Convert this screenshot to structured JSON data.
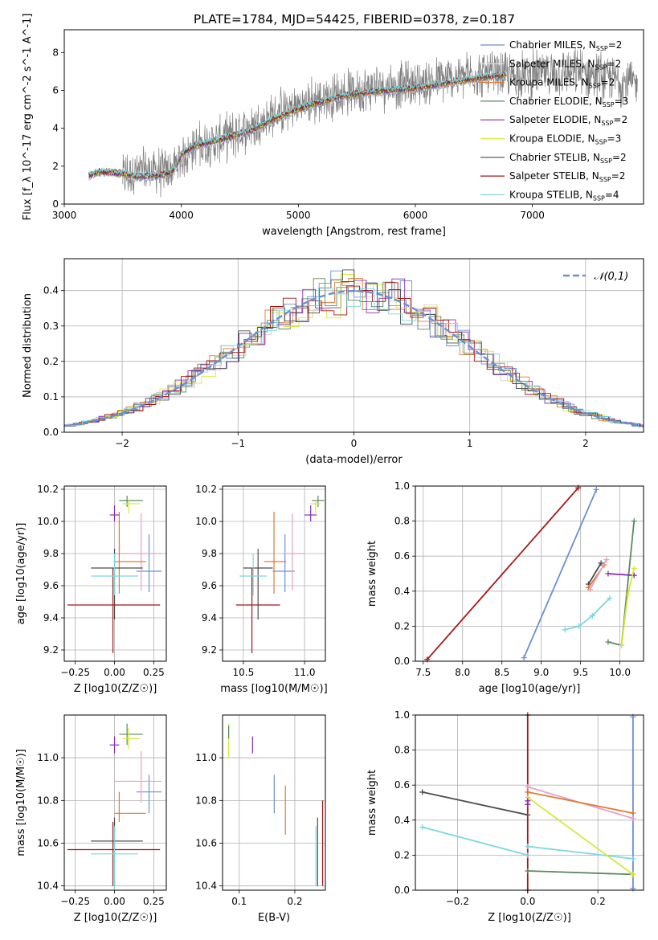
{
  "figure": {
    "title": "PLATE=1784, MJD=54425, FIBERID=0378, z=0.187"
  },
  "models": [
    {
      "name": "Chabrier MILES",
      "nssp": "2",
      "color": "#6b8fd6"
    },
    {
      "name": "Salpeter MILES",
      "nssp": "2",
      "color": "#e3e3e3"
    },
    {
      "name": "Kroupa MILES",
      "nssp": "2",
      "color": "#e07b2f"
    },
    {
      "name": "Chabrier ELODIE",
      "nssp": "3",
      "color": "#5a8a5e"
    },
    {
      "name": "Salpeter ELODIE",
      "nssp": "2",
      "color": "#8e2ab5"
    },
    {
      "name": "Kroupa ELODIE",
      "nssp": "3",
      "color": "#d6e83a"
    },
    {
      "name": "Chabrier STELIB",
      "nssp": "2",
      "color": "#4d4d4d"
    },
    {
      "name": "Salpeter STELIB",
      "nssp": "2",
      "color": "#a51717"
    },
    {
      "name": "Kroupa STELIB",
      "nssp": "4",
      "color": "#7ad8df"
    }
  ],
  "chart_data": [
    {
      "id": "spectrum",
      "type": "line",
      "title": "PLATE=1784, MJD=54425, FIBERID=0378, z=0.187",
      "xlabel": "wavelength [Angstrom, rest frame]",
      "ylabel": "Flux [f_λ 10^-17 erg cm^-2 s^-1 A^-1]",
      "xlim": [
        3000,
        7950
      ],
      "ylim": [
        0,
        9.2
      ],
      "xticks": [
        3000,
        4000,
        5000,
        6000,
        7000
      ],
      "yticks": [
        0,
        2,
        4,
        6,
        8
      ],
      "legend": "top-right",
      "data_color": "#808080",
      "data_spectrum": {
        "x": [
          3500,
          3700,
          3900,
          4100,
          4300,
          4500,
          4700,
          4900,
          5100,
          5300,
          5500,
          5700,
          5900,
          6100,
          6300,
          6500,
          6700,
          6900,
          7100,
          7300,
          7500,
          7700,
          7900
        ],
        "y": [
          1.5,
          1.8,
          1.7,
          3.0,
          3.3,
          3.8,
          4.4,
          5.0,
          5.4,
          5.7,
          6.0,
          6.2,
          6.3,
          6.4,
          6.6,
          6.9,
          6.8,
          6.8,
          6.9,
          6.9,
          6.9,
          6.6,
          6.3
        ],
        "scatter": 1.0
      },
      "model_curve": {
        "x": [
          3210,
          3300,
          3400,
          3500,
          3600,
          3700,
          3800,
          3900,
          3950,
          4000,
          4100,
          4200,
          4400,
          4600,
          4800,
          5000,
          5200,
          5400,
          5600,
          5800,
          6000,
          6200,
          6400,
          6600,
          6780
        ],
        "y": [
          1.5,
          1.7,
          1.65,
          1.6,
          1.45,
          1.45,
          1.5,
          1.6,
          1.9,
          2.6,
          3.0,
          3.2,
          3.5,
          3.9,
          4.5,
          5.0,
          5.4,
          5.7,
          5.9,
          6.0,
          6.1,
          6.3,
          6.5,
          6.7,
          6.8
        ]
      }
    },
    {
      "id": "residuals",
      "type": "line",
      "xlabel": "(data-model)/error",
      "ylabel": "Normed distribution",
      "xlim": [
        -2.5,
        2.5
      ],
      "ylim": [
        0,
        0.49
      ],
      "xticks": [
        -2,
        -1,
        0,
        1,
        2
      ],
      "yticks": [
        0.0,
        0.1,
        0.2,
        0.3,
        0.4
      ],
      "legend": "top-right",
      "reference": {
        "name": "𝒩(0,1)",
        "color": "#6a8fd6",
        "mean": 0,
        "sigma": 1
      }
    },
    {
      "id": "age-vs-Z",
      "type": "scatter",
      "xlabel": "Z [log10(Z/Z☉)]",
      "ylabel": "age  [log10(age/yr)]",
      "xlim": [
        -0.32,
        0.33
      ],
      "ylim": [
        9.13,
        10.22
      ],
      "xticks": [
        -0.25,
        0.0,
        0.25
      ],
      "xticklabels": [
        "−0.25",
        "0.00",
        "0.25"
      ],
      "yticks": [
        9.2,
        9.4,
        9.6,
        9.8,
        10.0,
        10.2
      ],
      "points": [
        {
          "x": 0.22,
          "y": 9.69,
          "xerr": [
            0.08,
            0.08
          ],
          "yerr": [
            0.13,
            0.23
          ],
          "color": "#6b8fd6"
        },
        {
          "x": 0.17,
          "y": 9.8,
          "xerr": [
            0.17,
            0.13
          ],
          "yerr": [
            0.23,
            0.25
          ],
          "color": "#e8a0c6"
        },
        {
          "x": 0.03,
          "y": 9.75,
          "xerr": [
            0.03,
            0.17
          ],
          "yerr": [
            0.2,
            0.31
          ],
          "color": "#e07b2f"
        },
        {
          "x": 0.08,
          "y": 10.13,
          "xerr": [
            0.05,
            0.1
          ],
          "yerr": [
            0.04,
            0.03
          ],
          "color": "#5a8a5e"
        },
        {
          "x": 0.0,
          "y": 10.04,
          "xerr": [
            0.03,
            0.03
          ],
          "yerr": [
            0.04,
            0.06
          ],
          "color": "#8e2ab5"
        },
        {
          "x": 0.09,
          "y": 10.11,
          "xerr": [
            0.04,
            0.07
          ],
          "yerr": [
            0.06,
            0.02
          ],
          "color": "#d6e83a"
        },
        {
          "x": 0.0,
          "y": 9.71,
          "xerr": [
            0.15,
            0.18
          ],
          "yerr": [
            0.32,
            0.12
          ],
          "color": "#4d4d4d"
        },
        {
          "x": -0.01,
          "y": 9.48,
          "xerr": [
            0.29,
            0.3
          ],
          "yerr": [
            0.3,
            0.23
          ],
          "color": "#a51717"
        },
        {
          "x": 0.0,
          "y": 9.66,
          "xerr": [
            0.15,
            0.15
          ],
          "yerr": [
            0.12,
            0.14
          ],
          "color": "#7ad8df"
        }
      ]
    },
    {
      "id": "age-vs-mass",
      "type": "scatter",
      "xlabel": "mass [log10(M/M☉)]",
      "ylabel": "",
      "xlim": [
        10.33,
        11.17
      ],
      "ylim": [
        9.13,
        10.22
      ],
      "xticks": [
        10.5,
        11.0
      ],
      "yticks": [
        9.2,
        9.4,
        9.6,
        9.8,
        10.0,
        10.2
      ],
      "points": [
        {
          "x": 10.84,
          "y": 9.69,
          "xerr": [
            0.1,
            0.08
          ],
          "yerr": [
            0.13,
            0.23
          ],
          "color": "#6b8fd6"
        },
        {
          "x": 10.9,
          "y": 9.8,
          "xerr": [
            0.08,
            0.1
          ],
          "yerr": [
            0.23,
            0.25
          ],
          "color": "#e8a0c6"
        },
        {
          "x": 10.75,
          "y": 9.75,
          "xerr": [
            0.08,
            0.1
          ],
          "yerr": [
            0.2,
            0.31
          ],
          "color": "#e07b2f"
        },
        {
          "x": 11.11,
          "y": 10.13,
          "xerr": [
            0.05,
            0.05
          ],
          "yerr": [
            0.04,
            0.03
          ],
          "color": "#5a8a5e"
        },
        {
          "x": 11.05,
          "y": 10.04,
          "xerr": [
            0.05,
            0.05
          ],
          "yerr": [
            0.04,
            0.06
          ],
          "color": "#8e2ab5"
        },
        {
          "x": 11.09,
          "y": 10.11,
          "xerr": [
            0.04,
            0.04
          ],
          "yerr": [
            0.06,
            0.02
          ],
          "color": "#d6e83a"
        },
        {
          "x": 10.62,
          "y": 9.71,
          "xerr": [
            0.12,
            0.12
          ],
          "yerr": [
            0.32,
            0.12
          ],
          "color": "#4d4d4d"
        },
        {
          "x": 10.57,
          "y": 9.48,
          "xerr": [
            0.13,
            0.23
          ],
          "yerr": [
            0.3,
            0.23
          ],
          "color": "#a51717"
        },
        {
          "x": 10.58,
          "y": 9.66,
          "xerr": [
            0.11,
            0.11
          ],
          "yerr": [
            0.12,
            0.14
          ],
          "color": "#7ad8df"
        }
      ]
    },
    {
      "id": "massweight-vs-age",
      "type": "line",
      "xlabel": "age  [log10(age/yr)]",
      "ylabel": "mass weight",
      "xlim": [
        7.4,
        10.3
      ],
      "ylim": [
        0,
        1
      ],
      "xticks": [
        7.5,
        8.0,
        8.5,
        9.0,
        9.5,
        10.0
      ],
      "yticks": [
        0.0,
        0.2,
        0.4,
        0.6,
        0.8,
        1.0
      ],
      "series": [
        {
          "color": "#a51717",
          "x": [
            7.55,
            9.47
          ],
          "y": [
            0.01,
            0.99
          ]
        },
        {
          "color": "#6b8fd6",
          "x": [
            8.78,
            9.7
          ],
          "y": [
            0.02,
            0.98
          ]
        },
        {
          "color": "#5a8a5e",
          "x": [
            9.85,
            10.02,
            10.18
          ],
          "y": [
            0.11,
            0.09,
            0.8
          ]
        },
        {
          "color": "#4d4d4d",
          "x": [
            9.6,
            9.76
          ],
          "y": [
            0.44,
            0.56
          ]
        },
        {
          "color": "#e07b2f",
          "x": [
            9.6,
            9.8
          ],
          "y": [
            0.42,
            0.55
          ]
        },
        {
          "color": "#e8a0c6",
          "x": [
            9.62,
            9.83
          ],
          "y": [
            0.41,
            0.58
          ]
        },
        {
          "color": "#8e2ab5",
          "x": [
            9.85,
            10.18
          ],
          "y": [
            0.5,
            0.49
          ]
        },
        {
          "color": "#7ad8df",
          "x": [
            9.3,
            9.48,
            9.65,
            9.87
          ],
          "y": [
            0.18,
            0.2,
            0.26,
            0.36
          ]
        },
        {
          "color": "#d6e83a",
          "x": [
            10.02,
            10.1,
            10.18
          ],
          "y": [
            0.09,
            0.38,
            0.53
          ]
        }
      ]
    },
    {
      "id": "mass-vs-Z",
      "type": "scatter",
      "xlabel": "Z [log10(Z/Z☉)]",
      "ylabel": "mass [log10(M/M☉)]",
      "xlim": [
        -0.32,
        0.33
      ],
      "ylim": [
        10.38,
        11.2
      ],
      "xticks": [
        -0.25,
        0.0,
        0.25
      ],
      "xticklabels": [
        "−0.25",
        "0.00",
        "0.25"
      ],
      "yticks": [
        10.4,
        10.6,
        10.8,
        11.0
      ],
      "points": [
        {
          "x": 0.22,
          "y": 10.84,
          "xerr": [
            0.08,
            0.08
          ],
          "yerr": [
            0.1,
            0.08
          ],
          "color": "#6b8fd6"
        },
        {
          "x": 0.17,
          "y": 10.89,
          "xerr": [
            0.17,
            0.13
          ],
          "yerr": [
            0.1,
            0.14
          ],
          "color": "#e8a0c6"
        },
        {
          "x": 0.03,
          "y": 10.74,
          "xerr": [
            0.03,
            0.17
          ],
          "yerr": [
            0.04,
            0.1
          ],
          "color": "#e07b2f"
        },
        {
          "x": 0.08,
          "y": 11.11,
          "xerr": [
            0.05,
            0.1
          ],
          "yerr": [
            0.05,
            0.05
          ],
          "color": "#5a8a5e"
        },
        {
          "x": 0.0,
          "y": 11.06,
          "xerr": [
            0.03,
            0.03
          ],
          "yerr": [
            0.04,
            0.04
          ],
          "color": "#8e2ab5"
        },
        {
          "x": 0.09,
          "y": 11.09,
          "xerr": [
            0.04,
            0.07
          ],
          "yerr": [
            0.05,
            0.05
          ],
          "color": "#d6e83a"
        },
        {
          "x": 0.0,
          "y": 10.61,
          "xerr": [
            0.15,
            0.18
          ],
          "yerr": [
            0.21,
            0.11
          ],
          "color": "#4d4d4d"
        },
        {
          "x": -0.01,
          "y": 10.57,
          "xerr": [
            0.29,
            0.3
          ],
          "yerr": [
            0.17,
            0.13
          ],
          "color": "#a51717"
        },
        {
          "x": 0.0,
          "y": 10.55,
          "xerr": [
            0.15,
            0.15
          ],
          "yerr": [
            0.16,
            0.13
          ],
          "color": "#7ad8df"
        }
      ]
    },
    {
      "id": "mass-vs-EBV",
      "type": "scatter",
      "xlabel": "E(B-V)",
      "ylabel": "",
      "xlim": [
        0.07,
        0.255
      ],
      "ylim": [
        10.38,
        11.2
      ],
      "xticks": [
        0.1,
        0.2
      ],
      "yticks": [
        10.4,
        10.6,
        10.8,
        11.0
      ],
      "points": [
        {
          "x": 0.163,
          "y": 10.84,
          "xerr": [
            0,
            0
          ],
          "yerr": [
            0.1,
            0.08
          ],
          "color": "#6b8fd6"
        },
        {
          "x": 0.183,
          "y": 10.74,
          "xerr": [
            0,
            0
          ],
          "yerr": [
            0.1,
            0.13
          ],
          "color": "#e07b2f"
        },
        {
          "x": 0.124,
          "y": 11.06,
          "xerr": [
            0,
            0
          ],
          "yerr": [
            0.04,
            0.04
          ],
          "color": "#8e2ab5"
        },
        {
          "x": 0.081,
          "y": 11.08,
          "xerr": [
            0,
            0
          ],
          "yerr": [
            0.08,
            0.08
          ],
          "color": "#d6e83a"
        },
        {
          "x": 0.081,
          "y": 11.12,
          "xerr": [
            0,
            0
          ],
          "yerr": [
            0.03,
            0.03
          ],
          "color": "#5a8a5e"
        },
        {
          "x": 0.241,
          "y": 10.57,
          "xerr": [
            0,
            0
          ],
          "yerr": [
            0.17,
            0.15
          ],
          "color": "#4d4d4d"
        },
        {
          "x": 0.25,
          "y": 10.57,
          "xerr": [
            0,
            0
          ],
          "yerr": [
            0.17,
            0.23
          ],
          "color": "#a51717"
        },
        {
          "x": 0.238,
          "y": 10.55,
          "xerr": [
            0,
            0
          ],
          "yerr": [
            0.15,
            0.13
          ],
          "color": "#7ad8df"
        }
      ]
    },
    {
      "id": "massweight-vs-Z",
      "type": "line",
      "xlabel": "Z [log10(Z/Z☉)]",
      "ylabel": "mass weight",
      "xlim": [
        -0.32,
        0.33
      ],
      "ylim": [
        0,
        1
      ],
      "xticks": [
        -0.2,
        0.0,
        0.2
      ],
      "xticklabels": [
        "−0.2",
        "0.0",
        "0.2"
      ],
      "yticks": [
        0.0,
        0.2,
        0.4,
        0.6,
        0.8,
        1.0
      ],
      "series": [
        {
          "color": "#a51717",
          "x": [
            0.0,
            0.0
          ],
          "y": [
            0.0,
            1.0
          ]
        },
        {
          "color": "#6b8fd6",
          "x": [
            0.3,
            0.3
          ],
          "y": [
            0.01,
            0.99
          ]
        },
        {
          "color": "#4d4d4d",
          "x": [
            -0.3,
            0.0
          ],
          "y": [
            0.56,
            0.43
          ]
        },
        {
          "color": "#7ad8df",
          "x": [
            -0.3,
            0.0
          ],
          "y": [
            0.36,
            0.2
          ]
        },
        {
          "color": "#7ad8df",
          "x": [
            0.0,
            0.3
          ],
          "y": [
            0.25,
            0.18
          ]
        },
        {
          "color": "#5a8a5e",
          "x": [
            0.0,
            0.3
          ],
          "y": [
            0.11,
            0.09
          ]
        },
        {
          "color": "#e8a0c6",
          "x": [
            0.0,
            0.3
          ],
          "y": [
            0.59,
            0.41
          ]
        },
        {
          "color": "#e07b2f",
          "x": [
            0.0,
            0.3
          ],
          "y": [
            0.56,
            0.44
          ]
        },
        {
          "color": "#d6e83a",
          "x": [
            0.0,
            0.3
          ],
          "y": [
            0.53,
            0.09
          ]
        },
        {
          "color": "#8e2ab5",
          "x": [
            0.0,
            0.0
          ],
          "y": [
            0.49,
            0.51
          ]
        }
      ]
    }
  ]
}
